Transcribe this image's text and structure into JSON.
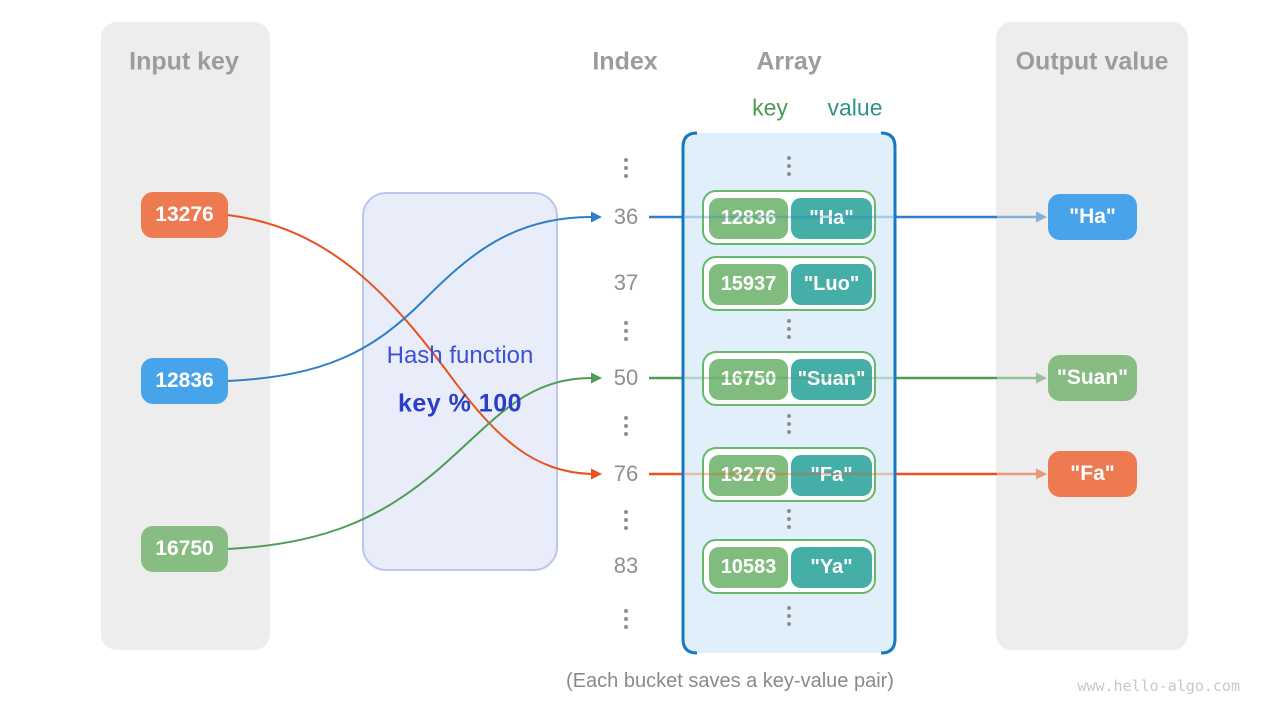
{
  "panels": {
    "input": {
      "title": "Input key",
      "items": [
        {
          "label": "13276",
          "color": "#EE7A52"
        },
        {
          "label": "12836",
          "color": "#47A4EA"
        },
        {
          "label": "16750",
          "color": "#87BD83"
        }
      ]
    },
    "output": {
      "title": "Output value",
      "items": [
        {
          "label": "\"Ha\"",
          "color": "#47A4EA"
        },
        {
          "label": "\"Suan\"",
          "color": "#87BD83"
        },
        {
          "label": "\"Fa\"",
          "color": "#EE7A52"
        }
      ]
    }
  },
  "hash_box": {
    "title": "Hash function",
    "formula": "key % 100"
  },
  "index_column": {
    "title": "Index",
    "values": [
      "36",
      "37",
      "50",
      "76",
      "83"
    ]
  },
  "array": {
    "title": "Array",
    "key_label": "key",
    "value_label": "value",
    "pairs": [
      {
        "key": "12836",
        "value": "\"Ha\""
      },
      {
        "key": "15937",
        "value": "\"Luo\""
      },
      {
        "key": "16750",
        "value": "\"Suan\""
      },
      {
        "key": "13276",
        "value": "\"Fa\""
      },
      {
        "key": "10583",
        "value": "\"Ya\""
      }
    ]
  },
  "caption": "(Each bucket saves a key-value pair)",
  "watermark": "www.hello-algo.com",
  "colors": {
    "gray_panel": "#EDEDED",
    "gray_title": "#9C9C9C",
    "gray_text": "#8F8F8F",
    "caption": "#8A8A8A",
    "watermark": "#C8C8C8",
    "orange": "#EE7A52",
    "blue": "#47A4EA",
    "green": "#87BD83",
    "orange_line": "#E8531F",
    "blue_line": "#2E7FC6",
    "green_line": "#4F9C55",
    "key_green": "#7FBC7D",
    "val_teal": "#44AEA7",
    "pair_border": "#66B969",
    "array_fill": "#E1EFFA",
    "bracket": "#1778C2",
    "hash_fill": "#E9EDFA",
    "hash_border": "#BCC6EE",
    "hash_text": "#3C51D3",
    "hash_formula": "#2B3DC9",
    "key_label": "#4C9B53",
    "value_label": "#2F9388"
  }
}
